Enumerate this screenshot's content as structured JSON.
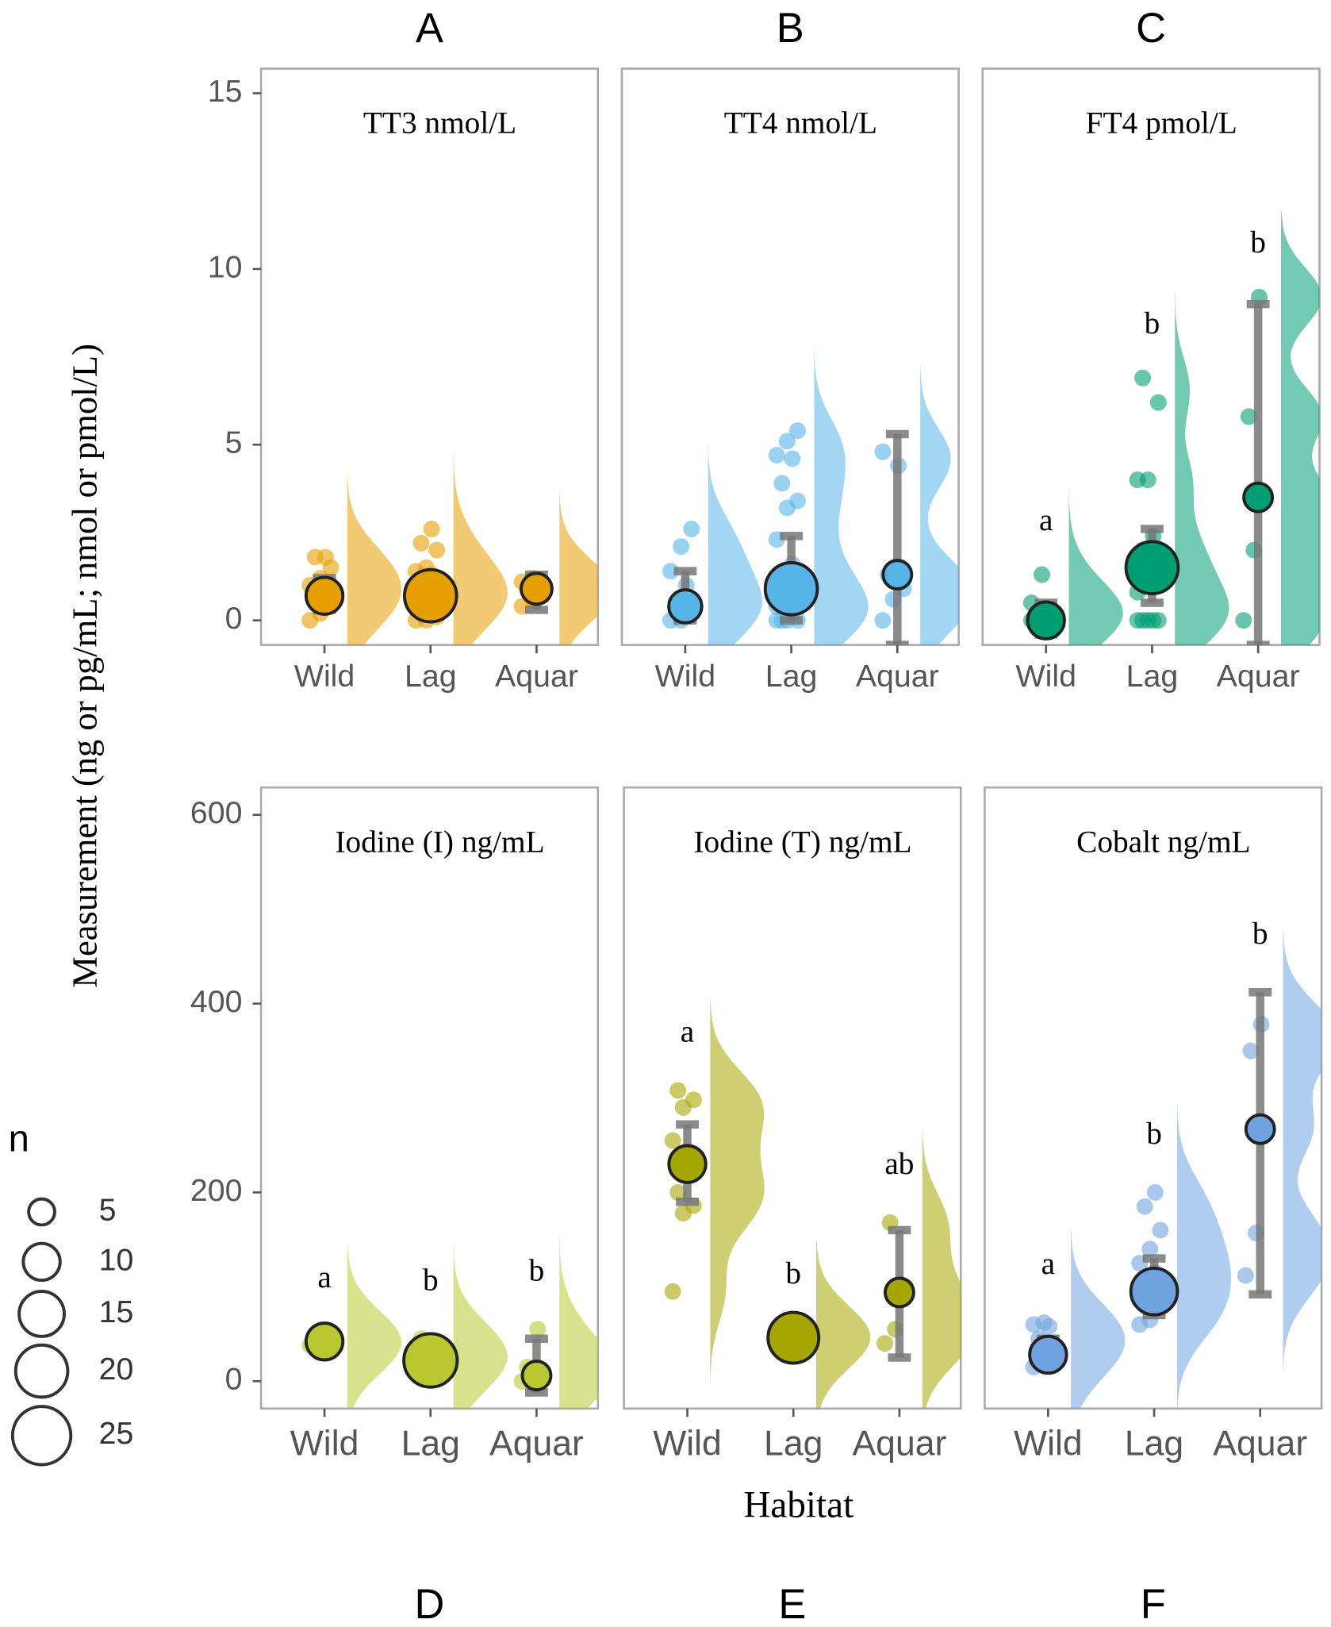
{
  "figure": {
    "y_label": "Measurement (ng or pg/mL; nmol or pmol/L)",
    "x_label": "Habitat",
    "legend": {
      "title": "n",
      "sizes": [
        5,
        10,
        15,
        20,
        25
      ]
    }
  },
  "chart_data": [
    {
      "type": "raincloud",
      "panel": "A",
      "title": "TT3 nmol/L",
      "color": "#E69F00",
      "categories": [
        "Wild",
        "Lag",
        "Aquar"
      ],
      "ylim": [
        -0.7,
        15.7
      ],
      "yticks": [
        0,
        5,
        10,
        15
      ],
      "groups": [
        {
          "mean": 0.7,
          "lower": 0.3,
          "upper": 1.2,
          "n": 10,
          "points": [
            0,
            0.2,
            0.4,
            0.5,
            0.8,
            1,
            1.2,
            1.5,
            1.8,
            1.8
          ]
        },
        {
          "mean": 0.7,
          "lower": 0.5,
          "upper": 0.9,
          "n": 20,
          "points": [
            0,
            0,
            0.1,
            0.2,
            0.3,
            0.4,
            0.5,
            0.6,
            0.7,
            0.8,
            0.9,
            1,
            1.1,
            1.2,
            1.3,
            1.4,
            1.5,
            2,
            2.2,
            2.6
          ]
        },
        {
          "mean": 0.9,
          "lower": 0.3,
          "upper": 1.3,
          "n": 7,
          "points": [
            0.4,
            0.6,
            0.7,
            0.9,
            1,
            1.1,
            1.2
          ]
        }
      ]
    },
    {
      "type": "raincloud",
      "panel": "B",
      "title": "TT4 nmol/L",
      "color": "#56B4E9",
      "categories": [
        "Wild",
        "Lag",
        "Aquar"
      ],
      "ylim": [
        -0.7,
        15.7
      ],
      "groups": [
        {
          "mean": 0.4,
          "lower": 0,
          "upper": 1.4,
          "n": 8,
          "points": [
            0,
            0,
            0.2,
            0.5,
            1,
            1.4,
            2.1,
            2.6
          ]
        },
        {
          "mean": 0.9,
          "lower": 0,
          "upper": 2.4,
          "n": 20,
          "points": [
            0,
            0,
            0,
            0,
            0.2,
            0.4,
            0.5,
            1,
            1.3,
            1.6,
            2.3,
            3.2,
            3.4,
            3.9,
            4.6,
            4.7,
            5.1,
            5.4
          ]
        },
        {
          "mean": 1.3,
          "lower": -0.7,
          "upper": 5.3,
          "n": 6,
          "points": [
            0,
            0.6,
            0.9,
            1.3,
            4.4,
            4.8
          ]
        }
      ]
    },
    {
      "type": "raincloud",
      "panel": "C",
      "title": "FT4 pmol/L",
      "color": "#009E73",
      "categories": [
        "Wild",
        "Lag",
        "Aquar"
      ],
      "ylim": [
        -0.7,
        15.7
      ],
      "groups": [
        {
          "mean": 0,
          "lower": -0.4,
          "upper": 0.5,
          "n": 10,
          "letter": "a",
          "points": [
            0,
            0,
            0,
            0,
            0.3,
            0.5,
            1.3
          ]
        },
        {
          "mean": 1.5,
          "lower": 0.5,
          "upper": 2.6,
          "n": 20,
          "letter": "b",
          "points": [
            0,
            0,
            0,
            0,
            0,
            0.8,
            1,
            1.5,
            2,
            2.4,
            4,
            4,
            6.2,
            6.9
          ]
        },
        {
          "mean": 3.5,
          "lower": -0.7,
          "upper": 9,
          "n": 6,
          "letter": "b",
          "points": [
            0,
            2,
            3.5,
            5.8,
            9.2
          ]
        }
      ]
    },
    {
      "type": "raincloud",
      "panel": "D",
      "title": "Iodine (I) ng/mL",
      "color": "#B8C82E",
      "categories": [
        "Wild",
        "Lag",
        "Aquar"
      ],
      "ylim": [
        -29,
        629
      ],
      "yticks": [
        0,
        200,
        400,
        600
      ],
      "groups": [
        {
          "mean": 42,
          "lower": 35,
          "upper": 48,
          "n": 10,
          "letter": "a",
          "points": [
            38,
            40,
            42,
            45
          ]
        },
        {
          "mean": 22,
          "lower": 15,
          "upper": 30,
          "n": 21,
          "letter": "b",
          "points": [
            10,
            20,
            30,
            45
          ]
        },
        {
          "mean": 6,
          "lower": -12,
          "upper": 45,
          "n": 6,
          "letter": "b",
          "points": [
            0,
            5,
            10,
            15,
            55
          ]
        }
      ]
    },
    {
      "type": "raincloud",
      "panel": "E",
      "title": "Iodine (T) ng/mL",
      "color": "#A6A600",
      "categories": [
        "Wild",
        "Lag",
        "Aquar"
      ],
      "ylim": [
        -29,
        629
      ],
      "groups": [
        {
          "mean": 230,
          "lower": 190,
          "upper": 272,
          "n": 10,
          "letter": "a",
          "points": [
            95,
            178,
            186,
            200,
            230,
            255,
            290,
            298,
            308
          ]
        },
        {
          "mean": 46,
          "lower": 40,
          "upper": 52,
          "n": 19,
          "letter": "b",
          "points": [
            44,
            46,
            50
          ]
        },
        {
          "mean": 94,
          "lower": 25,
          "upper": 160,
          "n": 6,
          "letter": "ab",
          "points": [
            40,
            55,
            100,
            168
          ]
        }
      ]
    },
    {
      "type": "raincloud",
      "panel": "F",
      "title": "Cobalt ng/mL",
      "color": "#6FA3E0",
      "categories": [
        "Wild",
        "Lag",
        "Aquar"
      ],
      "ylim": [
        -29,
        629
      ],
      "groups": [
        {
          "mean": 28,
          "lower": 15,
          "upper": 45,
          "n": 10,
          "letter": "a",
          "points": [
            15,
            20,
            35,
            45,
            58,
            60,
            62
          ]
        },
        {
          "mean": 95,
          "lower": 70,
          "upper": 130,
          "n": 16,
          "letter": "b",
          "points": [
            60,
            65,
            80,
            100,
            115,
            125,
            140,
            160,
            185,
            200
          ]
        },
        {
          "mean": 267,
          "lower": 92,
          "upper": 412,
          "n": 6,
          "letter": "b",
          "points": [
            112,
            157,
            268,
            350,
            378
          ]
        }
      ]
    }
  ]
}
